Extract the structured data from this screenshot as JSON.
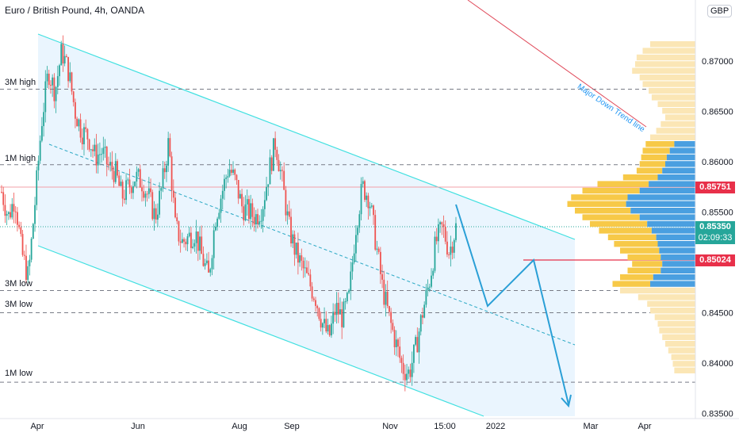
{
  "header": {
    "title": "Euro / British Pound, 4h, OANDA",
    "currency": "GBP"
  },
  "chart_data": {
    "type": "candlestick",
    "symbol": "EUR/GBP",
    "interval": "4h",
    "source": "OANDA",
    "x_tick_labels": [
      "Apr",
      "Jun",
      "Aug",
      "Sep",
      "Nov",
      "15:00",
      "2022",
      "Mar",
      "Apr"
    ],
    "y_tick_labels": [
      "0.87000",
      "0.86500",
      "0.86000",
      "0.85500",
      "0.85000",
      "0.84500",
      "0.84000",
      "0.83500"
    ],
    "ylim": [
      0.8349,
      0.8757
    ],
    "levels": [
      {
        "label": "3M high",
        "value": 0.8672
      },
      {
        "label": "1M high",
        "value": 0.8597
      },
      {
        "label": "3M low",
        "value": 0.8472
      },
      {
        "label": "3M low",
        "value": 0.845
      },
      {
        "label": "1M low",
        "value": 0.8381
      }
    ],
    "price_tags": [
      {
        "value": "0.85751",
        "color": "red"
      },
      {
        "value": "0.85350",
        "color": "green"
      },
      {
        "value": "02:09:33",
        "color": "green"
      },
      {
        "value": "0.85024",
        "color": "red"
      }
    ],
    "annotations": [
      "Major Down Trend line"
    ],
    "price_path": [
      0.857,
      0.8545,
      0.8565,
      0.851,
      0.8485,
      0.856,
      0.864,
      0.869,
      0.867,
      0.871,
      0.869,
      0.865,
      0.863,
      0.8625,
      0.8605,
      0.861,
      0.8595,
      0.859,
      0.8565,
      0.8575,
      0.8585,
      0.858,
      0.8565,
      0.8545,
      0.8575,
      0.862,
      0.8535,
      0.852,
      0.8525,
      0.853,
      0.8505,
      0.8485,
      0.8545,
      0.857,
      0.8595,
      0.858,
      0.8555,
      0.855,
      0.8545,
      0.8555,
      0.859,
      0.862,
      0.858,
      0.8535,
      0.851,
      0.8495,
      0.848,
      0.8465,
      0.844,
      0.8425,
      0.8455,
      0.8445,
      0.8465,
      0.8535,
      0.8575,
      0.8565,
      0.852,
      0.8475,
      0.8445,
      0.842,
      0.8395,
      0.839,
      0.8415,
      0.845,
      0.848,
      0.852,
      0.8535,
      0.851,
      0.8535
    ]
  }
}
